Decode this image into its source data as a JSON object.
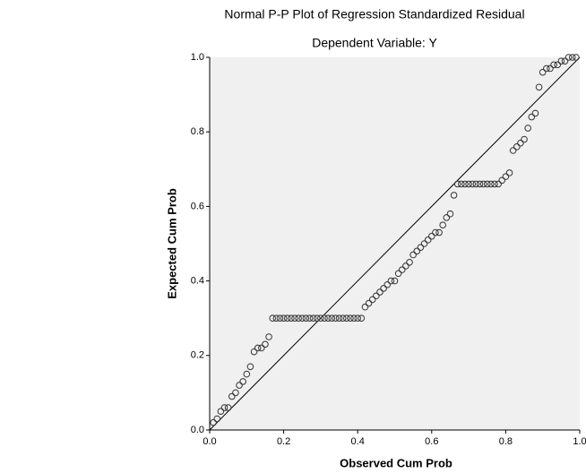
{
  "chart_data": {
    "type": "scatter",
    "title": "Normal P-P Plot of Regression Standardized Residual",
    "subtitle": "Dependent Variable: Y",
    "x_label": "Observed Cum Prob",
    "y_label": "Expected Cum Prob",
    "xlim": [
      0,
      1
    ],
    "ylim": [
      0,
      1
    ],
    "xticks": [
      {
        "value": 0,
        "label": "0.0"
      },
      0.2,
      0.4,
      0.6,
      0.8,
      {
        "value": 1,
        "label": "1.0"
      }
    ],
    "yticks": [
      {
        "value": 0,
        "label": "0.0"
      },
      0.2,
      0.4,
      0.6,
      0.8,
      {
        "value": 1,
        "label": "1.0"
      }
    ],
    "diagonal": true,
    "background": "#f0f0f0",
    "color": "#333333",
    "x": [
      0.01,
      0.02,
      0.03,
      0.04,
      0.05,
      0.06,
      0.07,
      0.08,
      0.09,
      0.1,
      0.11,
      0.12,
      0.13,
      0.14,
      0.15,
      0.16,
      0.17,
      0.18,
      0.19,
      0.2,
      0.21,
      0.22,
      0.23,
      0.24,
      0.25,
      0.26,
      0.27,
      0.28,
      0.29,
      0.3,
      0.31,
      0.32,
      0.33,
      0.34,
      0.35,
      0.36,
      0.37,
      0.38,
      0.39,
      0.4,
      0.41,
      0.42,
      0.43,
      0.44,
      0.45,
      0.46,
      0.47,
      0.48,
      0.49,
      0.5,
      0.51,
      0.52,
      0.53,
      0.54,
      0.55,
      0.56,
      0.57,
      0.58,
      0.59,
      0.6,
      0.61,
      0.62,
      0.63,
      0.64,
      0.65,
      0.66,
      0.67,
      0.68,
      0.69,
      0.7,
      0.71,
      0.72,
      0.73,
      0.74,
      0.75,
      0.76,
      0.77,
      0.78,
      0.79,
      0.8,
      0.81,
      0.82,
      0.83,
      0.84,
      0.85,
      0.86,
      0.87,
      0.88,
      0.89,
      0.9,
      0.91,
      0.92,
      0.93,
      0.94,
      0.95,
      0.96,
      0.97,
      0.98,
      0.99
    ],
    "values": [
      0.02,
      0.03,
      0.05,
      0.06,
      0.06,
      0.09,
      0.1,
      0.12,
      0.13,
      0.15,
      0.17,
      0.21,
      0.22,
      0.22,
      0.23,
      0.25,
      0.3,
      0.3,
      0.3,
      0.3,
      0.3,
      0.3,
      0.3,
      0.3,
      0.3,
      0.3,
      0.3,
      0.3,
      0.3,
      0.3,
      0.3,
      0.3,
      0.3,
      0.3,
      0.3,
      0.3,
      0.3,
      0.3,
      0.3,
      0.3,
      0.3,
      0.33,
      0.34,
      0.35,
      0.36,
      0.37,
      0.38,
      0.39,
      0.4,
      0.4,
      0.42,
      0.43,
      0.44,
      0.45,
      0.47,
      0.48,
      0.49,
      0.5,
      0.51,
      0.52,
      0.53,
      0.53,
      0.55,
      0.57,
      0.58,
      0.63,
      0.66,
      0.66,
      0.66,
      0.66,
      0.66,
      0.66,
      0.66,
      0.66,
      0.66,
      0.66,
      0.66,
      0.66,
      0.67,
      0.68,
      0.69,
      0.75,
      0.76,
      0.77,
      0.78,
      0.81,
      0.84,
      0.85,
      0.92,
      0.96,
      0.97,
      0.97,
      0.98,
      0.98,
      0.99,
      0.99,
      1.0,
      1.0,
      1.0
    ]
  }
}
